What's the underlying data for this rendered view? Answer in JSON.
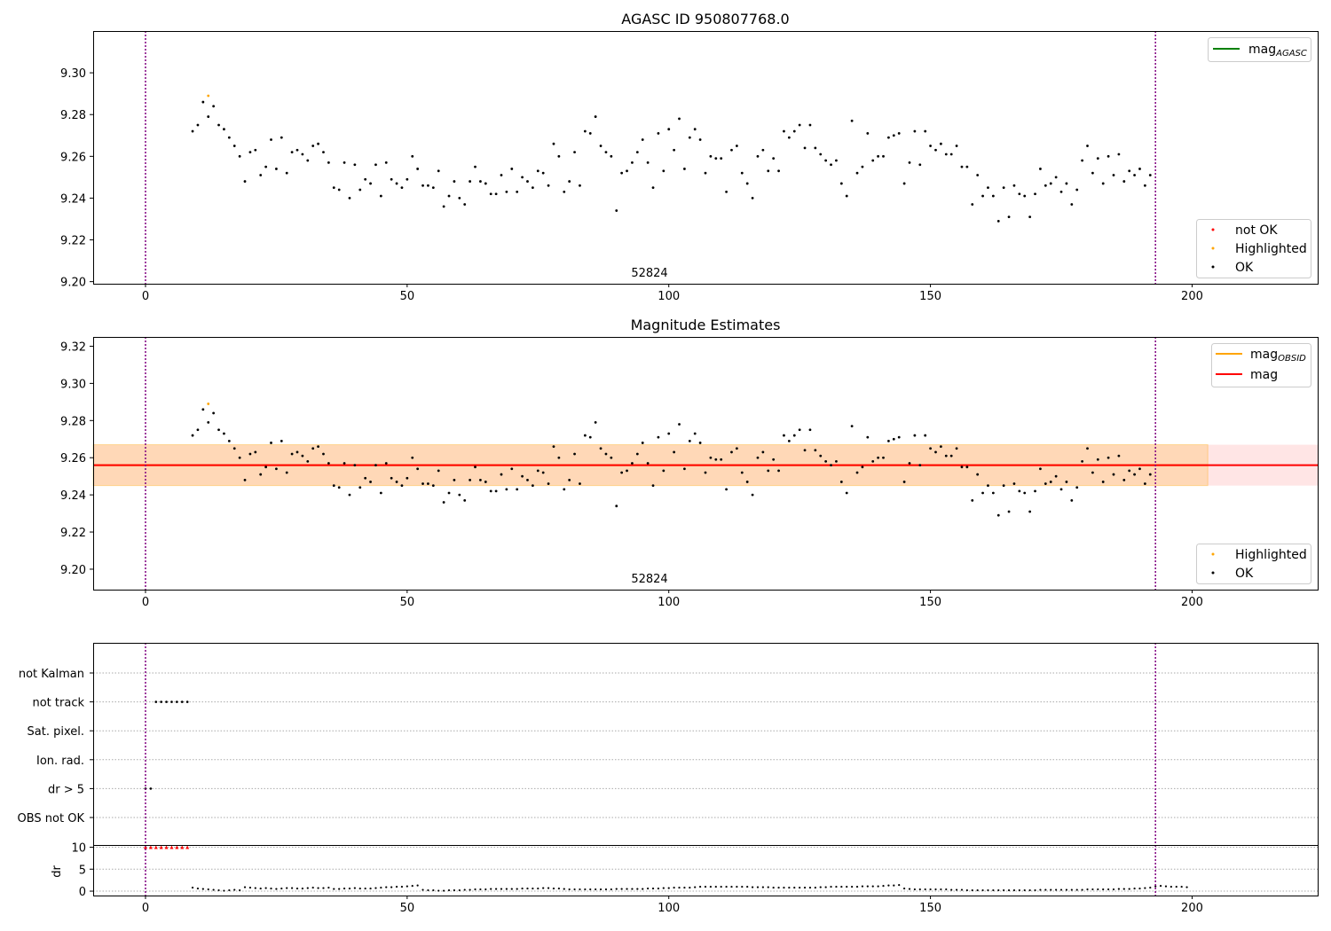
{
  "figure": {
    "panel1_title": "AGASC ID 950807768.0",
    "panel2_title": "Magnitude Estimates",
    "obsid_label": "52824"
  },
  "colors": {
    "ok": "#000000",
    "not_ok": "#ff0000",
    "highlighted": "#ffa500",
    "mag_agasc": "#008000",
    "mag": "#ff0000",
    "mag_obsid": "#ffa500",
    "vline": "#800080"
  },
  "legends": {
    "panel1_line": {
      "label": "mag",
      "subscript": "AGASC"
    },
    "panel1_points": [
      "not OK",
      "Highlighted",
      "OK"
    ],
    "panel2_lines": [
      {
        "label": "mag",
        "subscript": "OBSID"
      },
      {
        "label": "mag",
        "subscript": ""
      }
    ],
    "panel2_points": [
      "Highlighted",
      "OK"
    ]
  },
  "chart_data": [
    {
      "type": "scatter",
      "title": "AGASC ID 950807768.0",
      "xlim": [
        -10,
        224
      ],
      "ylim": [
        9.199,
        9.32
      ],
      "xticks": [
        0,
        50,
        100,
        150,
        200
      ],
      "yticks": [
        "9.20",
        "9.22",
        "9.24",
        "9.26",
        "9.28",
        "9.30"
      ],
      "vlines": [
        0,
        193
      ],
      "annotation": "52824",
      "highlighted": {
        "x": 12,
        "y": 9.289
      },
      "ok_x_start": 9,
      "ok_y": [
        9.272,
        9.275,
        9.286,
        9.279,
        9.284,
        9.275,
        9.273,
        9.269,
        9.265,
        9.26,
        9.248,
        9.262,
        9.263,
        9.251,
        9.255,
        9.268,
        9.254,
        9.269,
        9.252,
        9.262,
        9.263,
        9.261,
        9.258,
        9.265,
        9.266,
        9.262,
        9.257,
        9.245,
        9.244,
        9.257,
        9.24,
        9.256,
        9.244,
        9.249,
        9.247,
        9.256,
        9.241,
        9.257,
        9.249,
        9.247,
        9.245,
        9.249,
        9.26,
        9.254,
        9.246,
        9.246,
        9.245,
        9.253,
        9.236,
        9.241,
        9.248,
        9.24,
        9.237,
        9.248,
        9.255,
        9.248,
        9.247,
        9.242,
        9.242,
        9.251,
        9.243,
        9.254,
        9.243,
        9.25,
        9.248,
        9.245,
        9.253,
        9.252,
        9.246,
        9.266,
        9.26,
        9.243,
        9.248,
        9.262,
        9.246,
        9.272,
        9.271,
        9.279,
        9.265,
        9.262,
        9.26,
        9.234,
        9.252,
        9.253,
        9.257,
        9.262,
        9.268,
        9.257,
        9.245,
        9.271,
        9.253,
        9.273,
        9.263,
        9.278,
        9.254,
        9.269,
        9.273,
        9.268,
        9.252,
        9.26,
        9.259,
        9.259,
        9.243,
        9.263,
        9.265,
        9.252,
        9.247,
        9.24,
        9.26,
        9.263,
        9.253,
        9.259,
        9.253,
        9.272,
        9.269,
        9.272,
        9.275,
        9.264,
        9.275,
        9.264,
        9.261,
        9.258,
        9.256,
        9.258,
        9.247,
        9.241,
        9.277,
        9.252,
        9.255,
        9.271,
        9.258,
        9.26,
        9.26,
        9.269,
        9.27,
        9.271,
        9.247,
        9.257,
        9.272,
        9.256,
        9.272,
        9.265,
        9.263,
        9.266,
        9.261,
        9.261,
        9.265,
        9.255,
        9.255,
        9.237,
        9.251,
        9.241,
        9.245,
        9.241,
        9.229,
        9.245,
        9.231,
        9.246,
        9.242,
        9.241,
        9.231,
        9.242,
        9.254,
        9.246,
        9.247,
        9.25,
        9.243,
        9.247,
        9.237,
        9.244,
        9.258,
        9.265,
        9.252,
        9.259,
        9.247,
        9.26,
        9.251,
        9.261,
        9.248,
        9.253,
        9.251,
        9.254,
        9.246,
        9.251
      ]
    },
    {
      "type": "scatter",
      "title": "Magnitude Estimates",
      "xlim": [
        -10,
        224
      ],
      "ylim": [
        9.189,
        9.325
      ],
      "xticks": [
        0,
        50,
        100,
        150,
        200
      ],
      "yticks": [
        "9.20",
        "9.22",
        "9.24",
        "9.26",
        "9.28",
        "9.30",
        "9.32"
      ],
      "vlines": [
        0,
        193
      ],
      "annotation": "52824",
      "mag": 9.256,
      "mag_band": [
        9.245,
        9.267
      ],
      "mag_obsid": 9.256,
      "mag_obsid_band": [
        9.245,
        9.267
      ],
      "obsid_x_range": [
        0,
        203
      ],
      "highlighted": {
        "x": 12,
        "y": 9.289
      },
      "ok_x_start": 9,
      "ok_y_same_as_panel": 1
    },
    {
      "type": "scatter",
      "title": "",
      "xlim": [
        -10,
        224
      ],
      "xticks": [
        0,
        50,
        100,
        150,
        200
      ],
      "flag_categories": [
        "not Kalman",
        "not track",
        "Sat. pixel.",
        "Ion. rad.",
        "dr > 5",
        "OBS not OK"
      ],
      "flags": {
        "not track": [
          2,
          3,
          4,
          5,
          6,
          7,
          8
        ],
        "dr > 5": [
          0,
          1
        ]
      },
      "ylabel": "dr",
      "dr_yticks": [
        0,
        5,
        10
      ],
      "dr_ylim": [
        -1,
        10.5
      ],
      "dr_clipped_x": [
        0,
        1,
        2,
        3,
        4,
        5,
        6,
        7,
        8
      ],
      "dr_clip_value": 10,
      "dr_x_start": 9,
      "dr_values": [
        0.8,
        0.6,
        0.5,
        0.4,
        0.3,
        0.2,
        0.1,
        0.2,
        0.3,
        0.2,
        0.9,
        0.8,
        0.7,
        0.6,
        0.7,
        0.6,
        0.5,
        0.6,
        0.7,
        0.7,
        0.6,
        0.6,
        0.7,
        0.8,
        0.7,
        0.7,
        0.8,
        0.5,
        0.5,
        0.6,
        0.6,
        0.7,
        0.6,
        0.6,
        0.6,
        0.7,
        0.8,
        0.9,
        0.9,
        1.0,
        1.0,
        1.1,
        1.2,
        1.3,
        0.3,
        0.2,
        0.2,
        0.1,
        0.1,
        0.2,
        0.2,
        0.2,
        0.3,
        0.3,
        0.4,
        0.4,
        0.4,
        0.5,
        0.5,
        0.5,
        0.5,
        0.5,
        0.5,
        0.6,
        0.6,
        0.6,
        0.6,
        0.7,
        0.7,
        0.6,
        0.6,
        0.5,
        0.4,
        0.4,
        0.4,
        0.4,
        0.4,
        0.4,
        0.4,
        0.4,
        0.4,
        0.5,
        0.5,
        0.5,
        0.5,
        0.5,
        0.5,
        0.6,
        0.6,
        0.6,
        0.7,
        0.7,
        0.8,
        0.8,
        0.8,
        0.8,
        0.9,
        1.0,
        1.0,
        1.0,
        1.0,
        1.0,
        1.0,
        1.0,
        1.0,
        1.0,
        1.0,
        0.9,
        0.9,
        0.9,
        0.9,
        0.8,
        0.8,
        0.8,
        0.8,
        0.8,
        0.8,
        0.8,
        0.8,
        0.8,
        0.9,
        0.9,
        1.0,
        1.0,
        1.0,
        1.0,
        1.0,
        1.0,
        1.1,
        1.1,
        1.1,
        1.1,
        1.2,
        1.3,
        1.3,
        1.4,
        0.6,
        0.5,
        0.4,
        0.4,
        0.4,
        0.4,
        0.4,
        0.4,
        0.4,
        0.3,
        0.3,
        0.3,
        0.2,
        0.2,
        0.2,
        0.2,
        0.2,
        0.2,
        0.2,
        0.2,
        0.2,
        0.2,
        0.2,
        0.2,
        0.2,
        0.2,
        0.3,
        0.3,
        0.3,
        0.3,
        0.3,
        0.3,
        0.3,
        0.3,
        0.3,
        0.4,
        0.4,
        0.4,
        0.4,
        0.4,
        0.4,
        0.5,
        0.5,
        0.5,
        0.6,
        0.6,
        0.7,
        0.8,
        1.1,
        1.2,
        1.1,
        1.0,
        1.0,
        1.0,
        0.9
      ]
    }
  ]
}
